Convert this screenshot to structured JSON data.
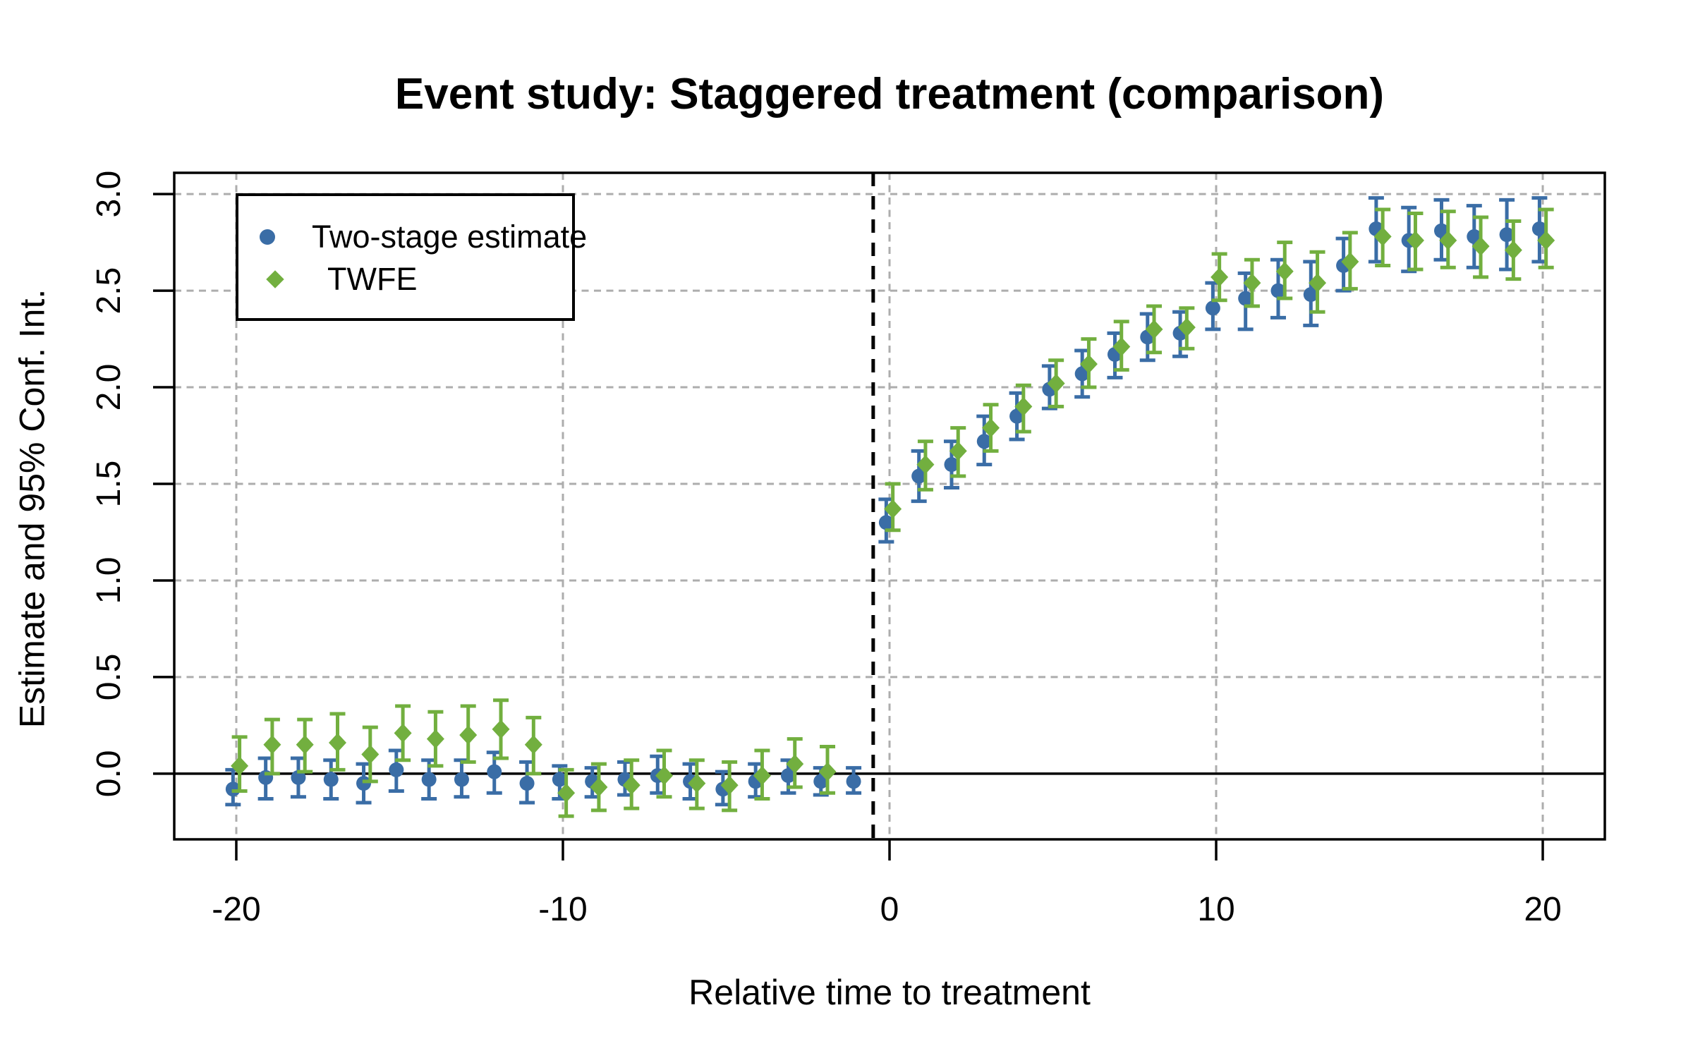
{
  "chart_data": {
    "type": "scatter",
    "title": "Event study: Staggered treatment (comparison)",
    "xlabel": "Relative time to treatment",
    "ylabel": "Estimate and 95% Conf. Int.",
    "xlim": [
      -21.9,
      21.9
    ],
    "ylim": [
      -0.34,
      3.11
    ],
    "x_ticks": [
      -20,
      -10,
      0,
      10,
      20
    ],
    "x_tick_labels": [
      "-20",
      "-10",
      "0",
      "10",
      "20"
    ],
    "y_ticks": [
      0.0,
      0.5,
      1.0,
      1.5,
      2.0,
      2.5,
      3.0
    ],
    "y_tick_labels": [
      "0.0",
      "0.5",
      "1.0",
      "1.5",
      "2.0",
      "2.5",
      "3.0"
    ],
    "grid": "dashed gray at every tick",
    "legend_position": "top-left",
    "reference_lines": {
      "horizontal_y": 0,
      "horizontal_style": "solid black",
      "vertical_x": -0.5,
      "vertical_style": "dashed black"
    },
    "style": {
      "grid_color": "#ADADAD",
      "axis_color": "#000000",
      "background": "#ffffff"
    },
    "series": [
      {
        "name": "Two-stage estimate",
        "marker": "circle",
        "color": "#3A6DA6",
        "dodge": -0.1,
        "points": [
          {
            "t": -20,
            "est": -0.08,
            "lo": -0.16,
            "hi": 0.02
          },
          {
            "t": -19,
            "est": -0.02,
            "lo": -0.13,
            "hi": 0.08
          },
          {
            "t": -18,
            "est": -0.02,
            "lo": -0.12,
            "hi": 0.08
          },
          {
            "t": -17,
            "est": -0.03,
            "lo": -0.13,
            "hi": 0.07
          },
          {
            "t": -16,
            "est": -0.05,
            "lo": -0.15,
            "hi": 0.05
          },
          {
            "t": -15,
            "est": 0.02,
            "lo": -0.09,
            "hi": 0.12
          },
          {
            "t": -14,
            "est": -0.03,
            "lo": -0.13,
            "hi": 0.07
          },
          {
            "t": -13,
            "est": -0.03,
            "lo": -0.12,
            "hi": 0.07
          },
          {
            "t": -12,
            "est": 0.01,
            "lo": -0.1,
            "hi": 0.11
          },
          {
            "t": -11,
            "est": -0.05,
            "lo": -0.15,
            "hi": 0.06
          },
          {
            "t": -10,
            "est": -0.03,
            "lo": -0.13,
            "hi": 0.04
          },
          {
            "t": -9,
            "est": -0.04,
            "lo": -0.12,
            "hi": 0.03
          },
          {
            "t": -8,
            "est": -0.03,
            "lo": -0.11,
            "hi": 0.06
          },
          {
            "t": -7,
            "est": -0.01,
            "lo": -0.1,
            "hi": 0.09
          },
          {
            "t": -6,
            "est": -0.04,
            "lo": -0.13,
            "hi": 0.05
          },
          {
            "t": -5,
            "est": -0.08,
            "lo": -0.16,
            "hi": 0.01
          },
          {
            "t": -4,
            "est": -0.04,
            "lo": -0.12,
            "hi": 0.05
          },
          {
            "t": -3,
            "est": -0.01,
            "lo": -0.1,
            "hi": 0.07
          },
          {
            "t": -2,
            "est": -0.04,
            "lo": -0.11,
            "hi": 0.03
          },
          {
            "t": -1,
            "est": -0.04,
            "lo": -0.1,
            "hi": 0.03
          },
          {
            "t": 0,
            "est": 1.3,
            "lo": 1.2,
            "hi": 1.42
          },
          {
            "t": 1,
            "est": 1.54,
            "lo": 1.41,
            "hi": 1.67
          },
          {
            "t": 2,
            "est": 1.6,
            "lo": 1.48,
            "hi": 1.72
          },
          {
            "t": 3,
            "est": 1.72,
            "lo": 1.6,
            "hi": 1.85
          },
          {
            "t": 4,
            "est": 1.85,
            "lo": 1.73,
            "hi": 1.97
          },
          {
            "t": 5,
            "est": 1.99,
            "lo": 1.89,
            "hi": 2.11
          },
          {
            "t": 6,
            "est": 2.07,
            "lo": 1.95,
            "hi": 2.19
          },
          {
            "t": 7,
            "est": 2.17,
            "lo": 2.05,
            "hi": 2.28
          },
          {
            "t": 8,
            "est": 2.26,
            "lo": 2.14,
            "hi": 2.38
          },
          {
            "t": 9,
            "est": 2.28,
            "lo": 2.16,
            "hi": 2.39
          },
          {
            "t": 10,
            "est": 2.41,
            "lo": 2.3,
            "hi": 2.54
          },
          {
            "t": 11,
            "est": 2.46,
            "lo": 2.3,
            "hi": 2.59
          },
          {
            "t": 12,
            "est": 2.5,
            "lo": 2.36,
            "hi": 2.66
          },
          {
            "t": 13,
            "est": 2.48,
            "lo": 2.32,
            "hi": 2.65
          },
          {
            "t": 14,
            "est": 2.63,
            "lo": 2.5,
            "hi": 2.77
          },
          {
            "t": 15,
            "est": 2.82,
            "lo": 2.65,
            "hi": 2.98
          },
          {
            "t": 16,
            "est": 2.76,
            "lo": 2.6,
            "hi": 2.93
          },
          {
            "t": 17,
            "est": 2.81,
            "lo": 2.66,
            "hi": 2.97
          },
          {
            "t": 18,
            "est": 2.78,
            "lo": 2.62,
            "hi": 2.94
          },
          {
            "t": 19,
            "est": 2.79,
            "lo": 2.61,
            "hi": 2.97
          },
          {
            "t": 20,
            "est": 2.82,
            "lo": 2.65,
            "hi": 2.98
          }
        ]
      },
      {
        "name": "TWFE",
        "marker": "diamond",
        "color": "#72AF3F",
        "dodge": 0.1,
        "points": [
          {
            "t": -20,
            "est": 0.04,
            "lo": -0.09,
            "hi": 0.19
          },
          {
            "t": -19,
            "est": 0.15,
            "lo": 0.0,
            "hi": 0.28
          },
          {
            "t": -18,
            "est": 0.15,
            "lo": 0.01,
            "hi": 0.28
          },
          {
            "t": -17,
            "est": 0.16,
            "lo": 0.02,
            "hi": 0.31
          },
          {
            "t": -16,
            "est": 0.1,
            "lo": -0.04,
            "hi": 0.24
          },
          {
            "t": -15,
            "est": 0.21,
            "lo": 0.07,
            "hi": 0.35
          },
          {
            "t": -14,
            "est": 0.18,
            "lo": 0.04,
            "hi": 0.32
          },
          {
            "t": -13,
            "est": 0.2,
            "lo": 0.06,
            "hi": 0.35
          },
          {
            "t": -12,
            "est": 0.23,
            "lo": 0.08,
            "hi": 0.38
          },
          {
            "t": -11,
            "est": 0.15,
            "lo": 0.0,
            "hi": 0.29
          },
          {
            "t": -10,
            "est": -0.1,
            "lo": -0.22,
            "hi": 0.02
          },
          {
            "t": -9,
            "est": -0.07,
            "lo": -0.19,
            "hi": 0.05
          },
          {
            "t": -8,
            "est": -0.06,
            "lo": -0.18,
            "hi": 0.07
          },
          {
            "t": -7,
            "est": -0.01,
            "lo": -0.12,
            "hi": 0.12
          },
          {
            "t": -6,
            "est": -0.05,
            "lo": -0.18,
            "hi": 0.07
          },
          {
            "t": -5,
            "est": -0.06,
            "lo": -0.19,
            "hi": 0.06
          },
          {
            "t": -4,
            "est": -0.01,
            "lo": -0.13,
            "hi": 0.12
          },
          {
            "t": -3,
            "est": 0.05,
            "lo": -0.07,
            "hi": 0.18
          },
          {
            "t": -2,
            "est": 0.01,
            "lo": -0.1,
            "hi": 0.14
          },
          {
            "t": 0,
            "est": 1.37,
            "lo": 1.26,
            "hi": 1.5
          },
          {
            "t": 1,
            "est": 1.6,
            "lo": 1.47,
            "hi": 1.72
          },
          {
            "t": 2,
            "est": 1.67,
            "lo": 1.54,
            "hi": 1.79
          },
          {
            "t": 3,
            "est": 1.79,
            "lo": 1.67,
            "hi": 1.91
          },
          {
            "t": 4,
            "est": 1.9,
            "lo": 1.77,
            "hi": 2.01
          },
          {
            "t": 5,
            "est": 2.02,
            "lo": 1.9,
            "hi": 2.14
          },
          {
            "t": 6,
            "est": 2.12,
            "lo": 2.0,
            "hi": 2.25
          },
          {
            "t": 7,
            "est": 2.21,
            "lo": 2.09,
            "hi": 2.34
          },
          {
            "t": 8,
            "est": 2.3,
            "lo": 2.18,
            "hi": 2.42
          },
          {
            "t": 9,
            "est": 2.31,
            "lo": 2.2,
            "hi": 2.41
          },
          {
            "t": 10,
            "est": 2.57,
            "lo": 2.45,
            "hi": 2.69
          },
          {
            "t": 11,
            "est": 2.54,
            "lo": 2.42,
            "hi": 2.66
          },
          {
            "t": 12,
            "est": 2.6,
            "lo": 2.46,
            "hi": 2.75
          },
          {
            "t": 13,
            "est": 2.54,
            "lo": 2.39,
            "hi": 2.7
          },
          {
            "t": 14,
            "est": 2.65,
            "lo": 2.51,
            "hi": 2.8
          },
          {
            "t": 15,
            "est": 2.78,
            "lo": 2.63,
            "hi": 2.92
          },
          {
            "t": 16,
            "est": 2.76,
            "lo": 2.61,
            "hi": 2.9
          },
          {
            "t": 17,
            "est": 2.76,
            "lo": 2.62,
            "hi": 2.91
          },
          {
            "t": 18,
            "est": 2.73,
            "lo": 2.57,
            "hi": 2.88
          },
          {
            "t": 19,
            "est": 2.71,
            "lo": 2.56,
            "hi": 2.86
          },
          {
            "t": 20,
            "est": 2.76,
            "lo": 2.62,
            "hi": 2.92
          }
        ]
      }
    ]
  }
}
